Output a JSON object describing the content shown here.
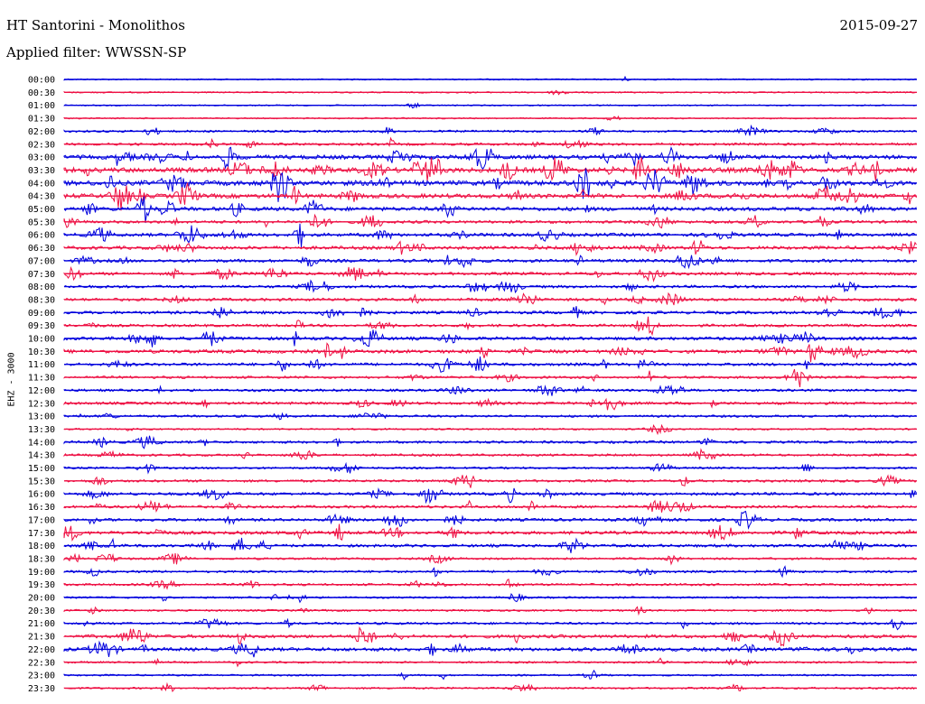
{
  "header": {
    "station": "HT Santorini - Monolithos",
    "date": "2015-09-27",
    "filter": "Applied filter: WWSSN-SP"
  },
  "channel_label": "EHZ - 3000",
  "colors": {
    "even": "#0000dd",
    "odd": "#ee1144"
  },
  "chart_data": {
    "type": "line",
    "title": "HT Santorini - Monolithos",
    "ylabel": "EHZ - 3000",
    "traces": [
      {
        "time": "00:00",
        "activity": 0.05
      },
      {
        "time": "00:30",
        "activity": 0.08
      },
      {
        "time": "01:00",
        "activity": 0.05
      },
      {
        "time": "01:30",
        "activity": 0.05
      },
      {
        "time": "02:00",
        "activity": 0.25
      },
      {
        "time": "02:30",
        "activity": 0.35
      },
      {
        "time": "03:00",
        "activity": 0.75
      },
      {
        "time": "03:30",
        "activity": 0.95
      },
      {
        "time": "04:00",
        "activity": 0.95
      },
      {
        "time": "04:30",
        "activity": 0.8
      },
      {
        "time": "05:00",
        "activity": 0.7
      },
      {
        "time": "05:30",
        "activity": 0.45
      },
      {
        "time": "06:00",
        "activity": 0.55
      },
      {
        "time": "06:30",
        "activity": 0.55
      },
      {
        "time": "07:00",
        "activity": 0.5
      },
      {
        "time": "07:30",
        "activity": 0.45
      },
      {
        "time": "08:00",
        "activity": 0.4
      },
      {
        "time": "08:30",
        "activity": 0.45
      },
      {
        "time": "09:00",
        "activity": 0.45
      },
      {
        "time": "09:30",
        "activity": 0.4
      },
      {
        "time": "10:00",
        "activity": 0.55
      },
      {
        "time": "10:30",
        "activity": 0.6
      },
      {
        "time": "11:00",
        "activity": 0.45
      },
      {
        "time": "11:30",
        "activity": 0.35
      },
      {
        "time": "12:00",
        "activity": 0.35
      },
      {
        "time": "12:30",
        "activity": 0.4
      },
      {
        "time": "13:00",
        "activity": 0.3
      },
      {
        "time": "13:30",
        "activity": 0.15
      },
      {
        "time": "14:00",
        "activity": 0.35
      },
      {
        "time": "14:30",
        "activity": 0.3
      },
      {
        "time": "15:00",
        "activity": 0.25
      },
      {
        "time": "15:30",
        "activity": 0.35
      },
      {
        "time": "16:00",
        "activity": 0.45
      },
      {
        "time": "16:30",
        "activity": 0.4
      },
      {
        "time": "17:00",
        "activity": 0.45
      },
      {
        "time": "17:30",
        "activity": 0.55
      },
      {
        "time": "18:00",
        "activity": 0.45
      },
      {
        "time": "18:30",
        "activity": 0.25
      },
      {
        "time": "19:00",
        "activity": 0.3
      },
      {
        "time": "19:30",
        "activity": 0.3
      },
      {
        "time": "20:00",
        "activity": 0.2
      },
      {
        "time": "20:30",
        "activity": 0.2
      },
      {
        "time": "21:00",
        "activity": 0.3
      },
      {
        "time": "21:30",
        "activity": 0.55
      },
      {
        "time": "22:00",
        "activity": 0.6
      },
      {
        "time": "22:30",
        "activity": 0.2
      },
      {
        "time": "23:00",
        "activity": 0.15
      },
      {
        "time": "23:30",
        "activity": 0.2
      }
    ]
  }
}
